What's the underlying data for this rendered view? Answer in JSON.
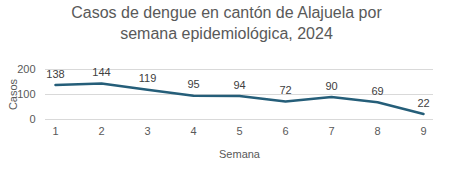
{
  "chart_data": {
    "type": "line",
    "title": "Casos de dengue en cantón de Alajuela por semana epidemiológica, 2024",
    "x_label": "Semana",
    "y_label": "Casos",
    "categories": [
      "1",
      "2",
      "3",
      "4",
      "5",
      "6",
      "7",
      "8",
      "9"
    ],
    "values": [
      138,
      144,
      119,
      95,
      94,
      72,
      90,
      69,
      22
    ],
    "color": "#255e79",
    "ylim": [
      0,
      200
    ],
    "yticks": [
      0,
      100,
      200
    ],
    "grid": true,
    "data_labels": true,
    "marker": "none",
    "line_style": "solid"
  }
}
